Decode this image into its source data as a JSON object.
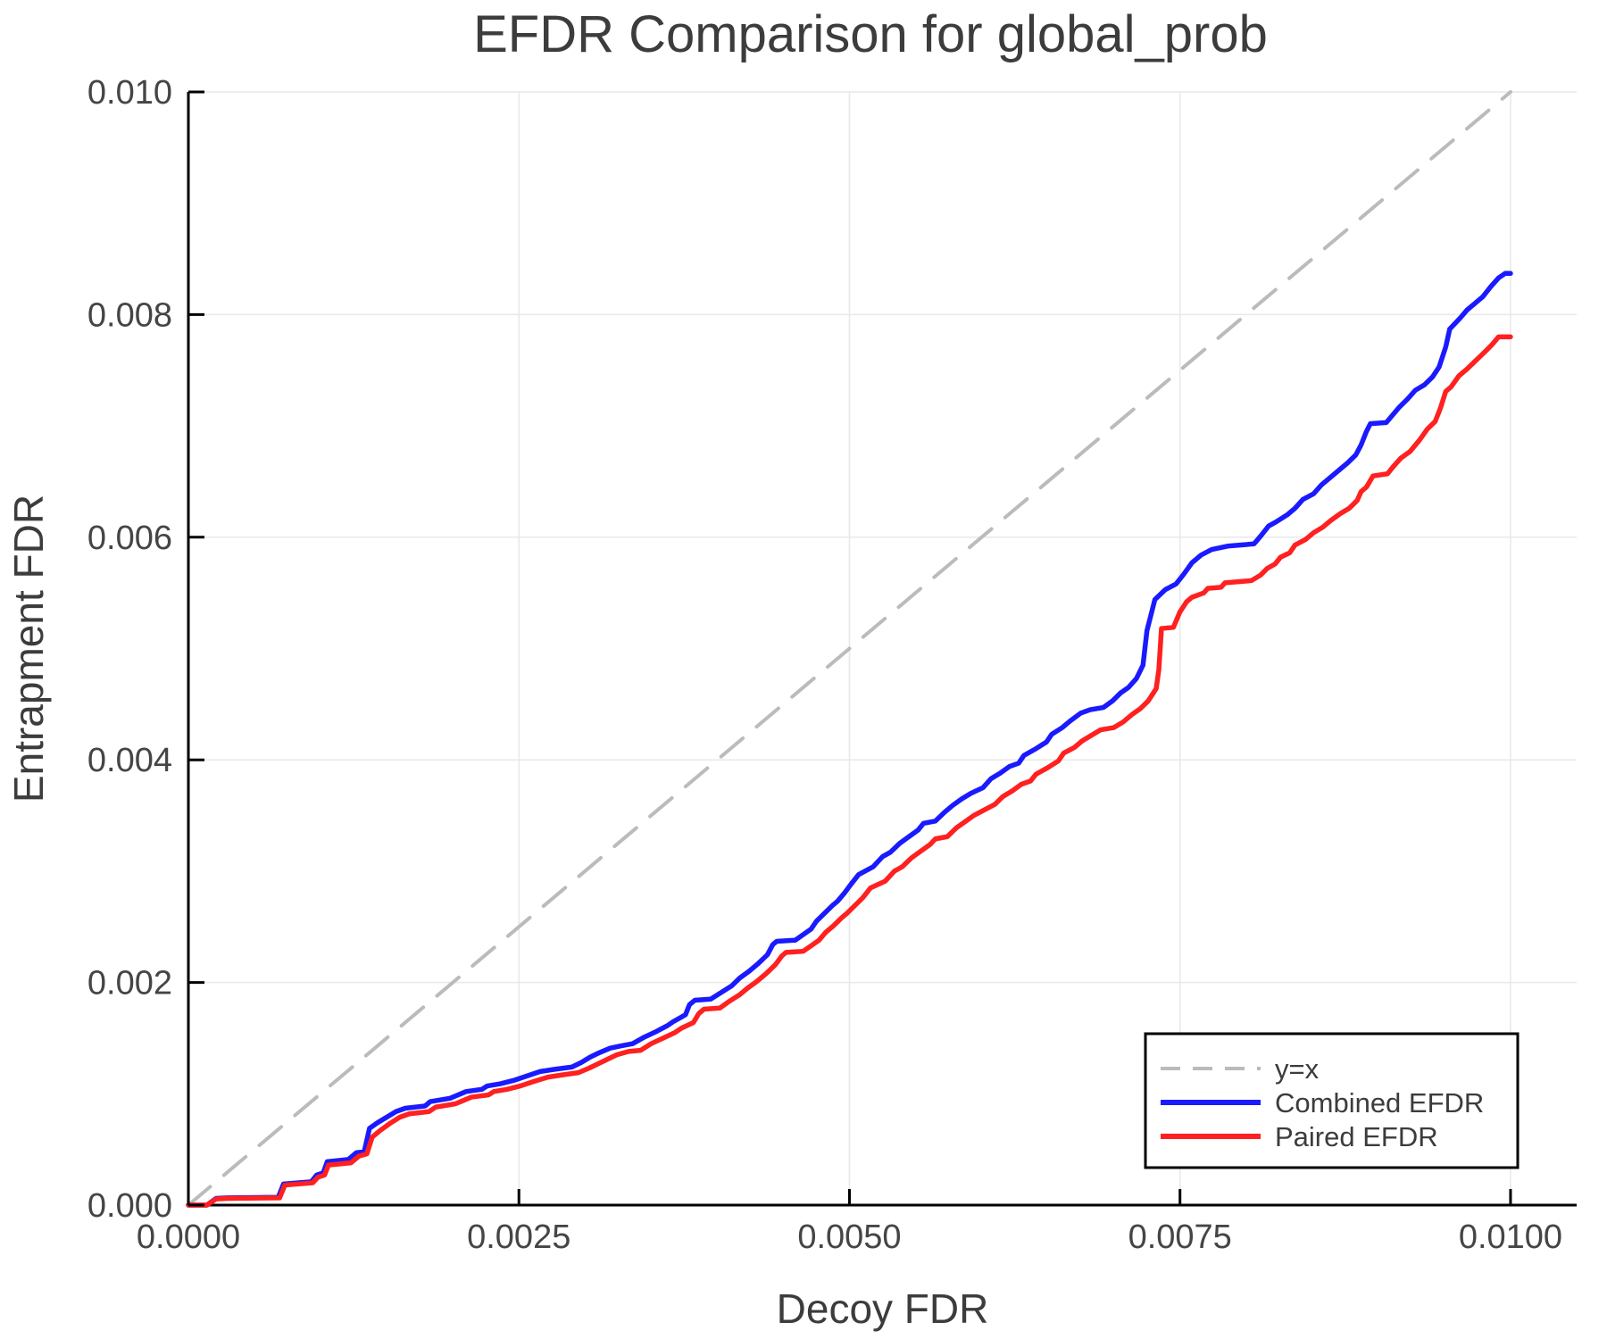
{
  "page": {
    "background": "#ffffff"
  },
  "title": "EFDR Comparison for global_prob",
  "axes": {
    "xlabel": "Decoy FDR",
    "ylabel": "Entrapment FDR"
  },
  "legend": {
    "position": "lower right",
    "border_color": "#000000",
    "background": "#ffffff",
    "entries": [
      {
        "label": "y=x",
        "color": "#bbbbbb",
        "style": "dashed"
      },
      {
        "label": "Combined EFDR",
        "color": "#1a1aff",
        "style": "solid"
      },
      {
        "label": "Paired EFDR",
        "color": "#ff2020",
        "style": "solid"
      }
    ]
  },
  "chart_data": {
    "type": "line",
    "title": "EFDR Comparison for global_prob",
    "xlabel": "Decoy FDR",
    "ylabel": "Entrapment FDR",
    "xlim": [
      0,
      0.0105
    ],
    "ylim": [
      0,
      0.01
    ],
    "grid": true,
    "grid_color": "#e8e8e8",
    "axis_color": "#000000",
    "text_color": "#3c3c3c",
    "tick_color": "#454545",
    "legend_position": "lower right",
    "x_ticks": {
      "values": [
        0,
        0.0025,
        0.005,
        0.0075,
        0.01
      ],
      "labels": [
        "0.0000",
        "0.0025",
        "0.0050",
        "0.0075",
        "0.0100"
      ]
    },
    "y_ticks": {
      "values": [
        0,
        0.002,
        0.004,
        0.006,
        0.008,
        0.01
      ],
      "labels": [
        "0.000",
        "0.002",
        "0.004",
        "0.006",
        "0.008",
        "0.010"
      ]
    },
    "point_unit": 0.0001,
    "series": [
      {
        "name": "y=x",
        "color": "#bbbbbb",
        "style": "dashed",
        "width": 4,
        "points": [
          [
            0,
            0
          ],
          [
            100,
            100
          ]
        ]
      },
      {
        "name": "Combined EFDR",
        "color": "#1a1aff",
        "style": "solid",
        "width": 5.5,
        "points": [
          [
            0,
            0
          ],
          [
            1.4,
            0
          ],
          [
            2.1,
            0.6
          ],
          [
            3,
            0.65
          ],
          [
            6.8,
            0.7
          ],
          [
            7.2,
            1.9
          ],
          [
            9.3,
            2.1
          ],
          [
            9.7,
            2.7
          ],
          [
            10.2,
            2.9
          ],
          [
            10.5,
            3.9
          ],
          [
            12.1,
            4.1
          ],
          [
            12.7,
            4.7
          ],
          [
            13.3,
            4.8
          ],
          [
            13.7,
            6.9
          ],
          [
            14.3,
            7.4
          ],
          [
            15,
            7.9
          ],
          [
            15.7,
            8.4
          ],
          [
            16.4,
            8.7
          ],
          [
            17.9,
            8.9
          ],
          [
            18.3,
            9.3
          ],
          [
            19.8,
            9.6
          ],
          [
            20.4,
            9.9
          ],
          [
            21,
            10.2
          ],
          [
            22.2,
            10.4
          ],
          [
            22.6,
            10.7
          ],
          [
            23.6,
            10.9
          ],
          [
            24.6,
            11.2
          ],
          [
            25.6,
            11.6
          ],
          [
            26.6,
            12
          ],
          [
            27.7,
            12.2
          ],
          [
            29,
            12.4
          ],
          [
            29.7,
            12.8
          ],
          [
            30.4,
            13.3
          ],
          [
            31.1,
            13.7
          ],
          [
            31.9,
            14.1
          ],
          [
            32.7,
            14.3
          ],
          [
            33.6,
            14.5
          ],
          [
            34.5,
            15.1
          ],
          [
            35.4,
            15.6
          ],
          [
            36.2,
            16.1
          ],
          [
            36.7,
            16.5
          ],
          [
            37.6,
            17.1
          ],
          [
            37.9,
            18
          ],
          [
            38.3,
            18.4
          ],
          [
            39.5,
            18.5
          ],
          [
            40.3,
            19.1
          ],
          [
            41.1,
            19.7
          ],
          [
            41.7,
            20.4
          ],
          [
            42.4,
            21
          ],
          [
            43.1,
            21.7
          ],
          [
            43.8,
            22.5
          ],
          [
            44.2,
            23.4
          ],
          [
            44.5,
            23.7
          ],
          [
            45.9,
            23.8
          ],
          [
            46.5,
            24.3
          ],
          [
            47.1,
            24.8
          ],
          [
            47.5,
            25.5
          ],
          [
            48.1,
            26.2
          ],
          [
            48.7,
            26.9
          ],
          [
            49.1,
            27.3
          ],
          [
            49.6,
            28
          ],
          [
            50.1,
            28.8
          ],
          [
            50.7,
            29.7
          ],
          [
            51.8,
            30.4
          ],
          [
            52.5,
            31.3
          ],
          [
            53.1,
            31.7
          ],
          [
            53.8,
            32.5
          ],
          [
            54.5,
            33.1
          ],
          [
            55.2,
            33.7
          ],
          [
            55.6,
            34.3
          ],
          [
            56.5,
            34.5
          ],
          [
            57.2,
            35.3
          ],
          [
            57.8,
            35.9
          ],
          [
            58.5,
            36.5
          ],
          [
            59.2,
            37
          ],
          [
            60.1,
            37.5
          ],
          [
            60.7,
            38.3
          ],
          [
            61.4,
            38.8
          ],
          [
            62.1,
            39.4
          ],
          [
            62.8,
            39.7
          ],
          [
            63.2,
            40.4
          ],
          [
            64.1,
            41
          ],
          [
            64.9,
            41.6
          ],
          [
            65.3,
            42.3
          ],
          [
            66.1,
            42.9
          ],
          [
            66.7,
            43.5
          ],
          [
            67.5,
            44.2
          ],
          [
            68.2,
            44.5
          ],
          [
            69.2,
            44.7
          ],
          [
            69.9,
            45.3
          ],
          [
            70.5,
            46
          ],
          [
            71.1,
            46.5
          ],
          [
            71.7,
            47.3
          ],
          [
            72.2,
            48.5
          ],
          [
            72.5,
            51.6
          ],
          [
            73.1,
            54.4
          ],
          [
            73.9,
            55.3
          ],
          [
            74.7,
            55.8
          ],
          [
            75.3,
            56.7
          ],
          [
            75.9,
            57.7
          ],
          [
            76.6,
            58.4
          ],
          [
            77.4,
            58.9
          ],
          [
            78.6,
            59.2
          ],
          [
            80.6,
            59.4
          ],
          [
            81.1,
            60.1
          ],
          [
            81.7,
            61
          ],
          [
            82.3,
            61.4
          ],
          [
            83.1,
            62
          ],
          [
            83.7,
            62.6
          ],
          [
            84.3,
            63.4
          ],
          [
            85.1,
            63.9
          ],
          [
            85.7,
            64.7
          ],
          [
            86.4,
            65.4
          ],
          [
            87.1,
            66.1
          ],
          [
            87.7,
            66.7
          ],
          [
            88.3,
            67.4
          ],
          [
            88.7,
            68.3
          ],
          [
            89.1,
            69.5
          ],
          [
            89.4,
            70.2
          ],
          [
            90.6,
            70.3
          ],
          [
            91.1,
            71
          ],
          [
            91.6,
            71.7
          ],
          [
            92.2,
            72.4
          ],
          [
            92.8,
            73.2
          ],
          [
            93.5,
            73.7
          ],
          [
            94.1,
            74.4
          ],
          [
            94.6,
            75.3
          ],
          [
            95.1,
            77.1
          ],
          [
            95.4,
            78.7
          ],
          [
            95.8,
            79.2
          ],
          [
            96.2,
            79.7
          ],
          [
            96.7,
            80.4
          ],
          [
            97.3,
            81
          ],
          [
            97.9,
            81.6
          ],
          [
            98.5,
            82.5
          ],
          [
            99.1,
            83.3
          ],
          [
            99.6,
            83.7
          ],
          [
            100,
            83.7
          ]
        ]
      },
      {
        "name": "Paired EFDR",
        "color": "#ff2020",
        "style": "solid",
        "width": 5.5,
        "points": [
          [
            0,
            0
          ],
          [
            1.4,
            0
          ],
          [
            2.1,
            0.55
          ],
          [
            3,
            0.6
          ],
          [
            6.9,
            0.65
          ],
          [
            7.3,
            1.8
          ],
          [
            9.4,
            2
          ],
          [
            9.8,
            2.5
          ],
          [
            10.3,
            2.7
          ],
          [
            10.6,
            3.6
          ],
          [
            12.3,
            3.8
          ],
          [
            12.9,
            4.4
          ],
          [
            13.5,
            4.6
          ],
          [
            13.9,
            6.1
          ],
          [
            14.5,
            6.7
          ],
          [
            15.2,
            7.3
          ],
          [
            16,
            7.9
          ],
          [
            16.7,
            8.2
          ],
          [
            18.2,
            8.4
          ],
          [
            18.7,
            8.8
          ],
          [
            20.2,
            9.1
          ],
          [
            20.8,
            9.4
          ],
          [
            21.4,
            9.7
          ],
          [
            22.7,
            9.9
          ],
          [
            23.1,
            10.2
          ],
          [
            24.1,
            10.4
          ],
          [
            25.1,
            10.7
          ],
          [
            26.1,
            11.1
          ],
          [
            27.2,
            11.5
          ],
          [
            28.3,
            11.7
          ],
          [
            29.5,
            11.9
          ],
          [
            30.3,
            12.3
          ],
          [
            31,
            12.7
          ],
          [
            31.7,
            13.1
          ],
          [
            32.4,
            13.5
          ],
          [
            33.3,
            13.8
          ],
          [
            34.2,
            13.9
          ],
          [
            35,
            14.5
          ],
          [
            35.9,
            15
          ],
          [
            36.8,
            15.5
          ],
          [
            37.3,
            15.9
          ],
          [
            38.2,
            16.4
          ],
          [
            38.6,
            17.2
          ],
          [
            39,
            17.6
          ],
          [
            40.2,
            17.7
          ],
          [
            40.9,
            18.3
          ],
          [
            41.7,
            18.9
          ],
          [
            42.3,
            19.5
          ],
          [
            43,
            20.1
          ],
          [
            43.7,
            20.8
          ],
          [
            44.4,
            21.6
          ],
          [
            44.9,
            22.4
          ],
          [
            45.2,
            22.7
          ],
          [
            46.5,
            22.8
          ],
          [
            47.1,
            23.3
          ],
          [
            47.7,
            23.8
          ],
          [
            48.2,
            24.5
          ],
          [
            48.8,
            25.1
          ],
          [
            49.4,
            25.8
          ],
          [
            49.8,
            26.2
          ],
          [
            50.4,
            26.9
          ],
          [
            51,
            27.6
          ],
          [
            51.6,
            28.5
          ],
          [
            52.7,
            29.1
          ],
          [
            53.4,
            30
          ],
          [
            54,
            30.4
          ],
          [
            54.7,
            31.2
          ],
          [
            55.4,
            31.8
          ],
          [
            56.1,
            32.4
          ],
          [
            56.5,
            32.9
          ],
          [
            57.4,
            33.1
          ],
          [
            58.1,
            33.9
          ],
          [
            58.7,
            34.4
          ],
          [
            59.4,
            35
          ],
          [
            60.2,
            35.5
          ],
          [
            61,
            36
          ],
          [
            61.6,
            36.7
          ],
          [
            62.3,
            37.2
          ],
          [
            63,
            37.8
          ],
          [
            63.7,
            38.1
          ],
          [
            64.1,
            38.7
          ],
          [
            65,
            39.3
          ],
          [
            65.8,
            39.9
          ],
          [
            66.2,
            40.6
          ],
          [
            67,
            41.1
          ],
          [
            67.6,
            41.7
          ],
          [
            69,
            42.7
          ],
          [
            70,
            42.9
          ],
          [
            70.7,
            43.4
          ],
          [
            71.4,
            44.1
          ],
          [
            72,
            44.6
          ],
          [
            72.6,
            45.3
          ],
          [
            73.2,
            46.4
          ],
          [
            73.4,
            48.1
          ],
          [
            73.6,
            51.8
          ],
          [
            74.5,
            51.9
          ],
          [
            75,
            53.3
          ],
          [
            75.5,
            54.2
          ],
          [
            75.9,
            54.6
          ],
          [
            76.8,
            55
          ],
          [
            77.1,
            55.4
          ],
          [
            78.1,
            55.5
          ],
          [
            78.4,
            55.9
          ],
          [
            80.4,
            56.1
          ],
          [
            81.1,
            56.6
          ],
          [
            81.6,
            57.2
          ],
          [
            82.2,
            57.6
          ],
          [
            82.6,
            58.2
          ],
          [
            83.3,
            58.6
          ],
          [
            83.7,
            59.3
          ],
          [
            84.5,
            59.8
          ],
          [
            85.1,
            60.4
          ],
          [
            85.8,
            60.9
          ],
          [
            86.4,
            61.5
          ],
          [
            87.1,
            62.1
          ],
          [
            87.8,
            62.6
          ],
          [
            88.4,
            63.3
          ],
          [
            88.7,
            64.1
          ],
          [
            89.1,
            64.5
          ],
          [
            89.6,
            65.5
          ],
          [
            90.7,
            65.7
          ],
          [
            91.1,
            66.3
          ],
          [
            91.7,
            67.1
          ],
          [
            92.4,
            67.7
          ],
          [
            93.1,
            68.7
          ],
          [
            93.7,
            69.7
          ],
          [
            94.3,
            70.4
          ],
          [
            94.7,
            71.6
          ],
          [
            95.1,
            73.1
          ],
          [
            95.5,
            73.5
          ],
          [
            96.1,
            74.5
          ],
          [
            96.7,
            75.1
          ],
          [
            97.4,
            75.9
          ],
          [
            98.1,
            76.7
          ],
          [
            98.6,
            77.3
          ],
          [
            99.1,
            78
          ],
          [
            100,
            78
          ]
        ]
      }
    ]
  }
}
